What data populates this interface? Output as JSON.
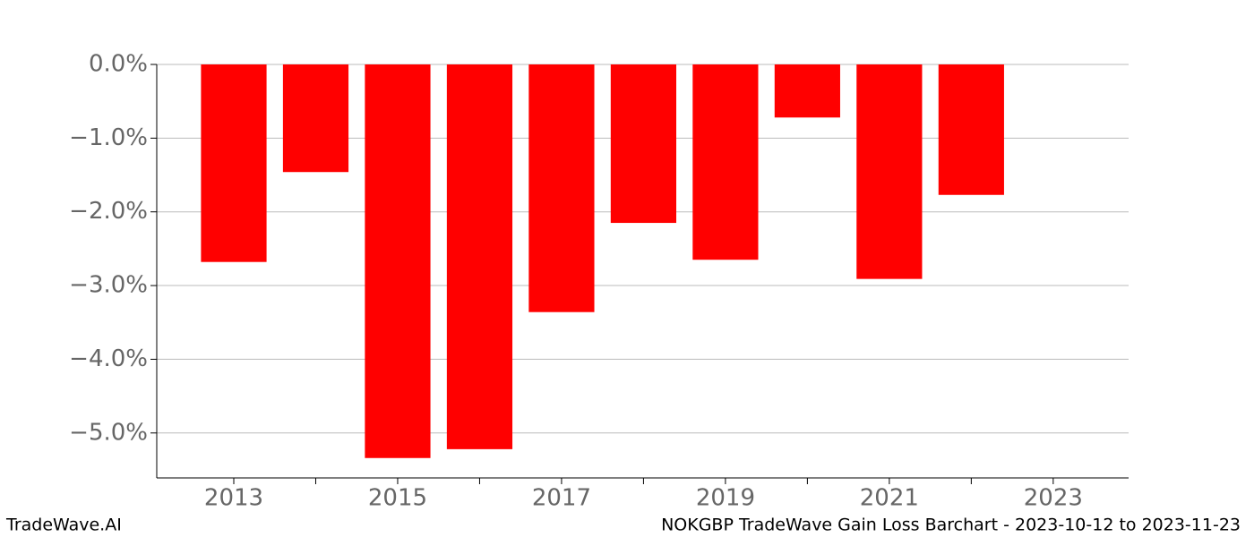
{
  "chart_data": {
    "type": "bar",
    "x": [
      2013,
      2014,
      2015,
      2016,
      2017,
      2018,
      2019,
      2020,
      2021,
      2022
    ],
    "values": [
      -2.68,
      -1.46,
      -5.34,
      -5.22,
      -3.36,
      -2.15,
      -2.65,
      -0.72,
      -2.91,
      -1.77
    ],
    "color": "#ff0000",
    "bar_width": 0.8,
    "xlim": [
      2012.06,
      2023.92
    ],
    "xticks": [
      2013,
      2015,
      2017,
      2019,
      2021,
      2023
    ],
    "xminorticks": [
      2014,
      2016,
      2018,
      2020,
      2022
    ],
    "ylim": [
      -5.61,
      0
    ],
    "yticks": [
      {
        "value": 0,
        "label": "0.0%"
      },
      {
        "value": -1,
        "label": "−1.0%"
      },
      {
        "value": -2,
        "label": "−2.0%"
      },
      {
        "value": -3,
        "label": "−3.0%"
      },
      {
        "value": -4,
        "label": "−4.0%"
      },
      {
        "value": -5,
        "label": "−5.0%"
      }
    ],
    "grid": true,
    "footer_left": "TradeWave.AI",
    "footer_right": "NOKGBP TradeWave Gain Loss Barchart - 2023-10-12 to 2023-11-23"
  }
}
